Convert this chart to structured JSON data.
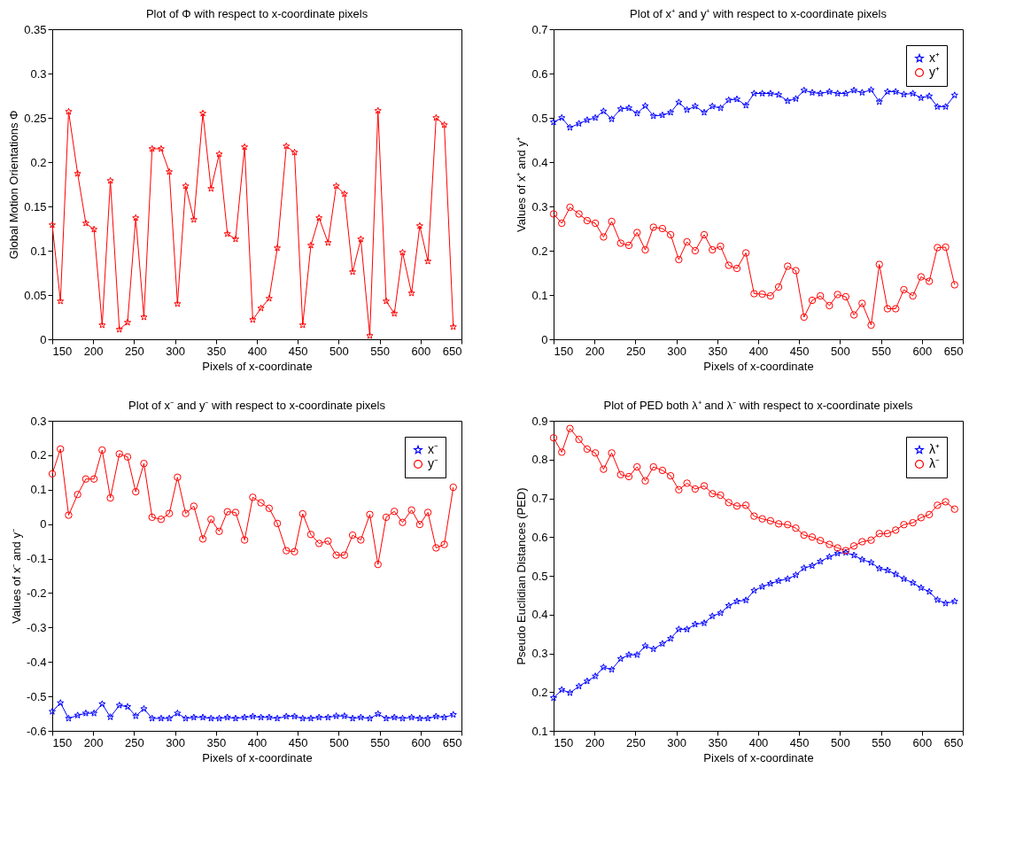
{
  "chart_data": [
    {
      "type": "line",
      "title": "Plot of Φ with respect to x-coordinate pixels",
      "xlabel": "Pixels of x-coordinate",
      "ylabel": "Global Motion Orientations Φ",
      "color": "#ff0000",
      "marker": "star",
      "x": [
        150,
        160,
        170,
        181,
        191,
        201,
        211,
        221,
        232,
        242,
        252,
        262,
        272,
        283,
        293,
        303,
        313,
        323,
        334,
        344,
        354,
        364,
        374,
        385,
        395,
        405,
        415,
        425,
        436,
        446,
        456,
        466,
        476,
        487,
        497,
        507,
        517,
        527,
        538,
        548,
        558,
        568,
        578,
        589,
        599,
        609,
        619,
        629,
        640
      ],
      "values": [
        0.129,
        0.043,
        0.257,
        0.187,
        0.131,
        0.124,
        0.016,
        0.179,
        0.011,
        0.019,
        0.137,
        0.025,
        0.215,
        0.215,
        0.189,
        0.04,
        0.173,
        0.135,
        0.255,
        0.17,
        0.209,
        0.119,
        0.113,
        0.217,
        0.022,
        0.035,
        0.046,
        0.103,
        0.218,
        0.211,
        0.016,
        0.106,
        0.137,
        0.109,
        0.173,
        0.164,
        0.076,
        0.113,
        0.004,
        0.258,
        0.043,
        0.029,
        0.098,
        0.052,
        0.128,
        0.088,
        0.25,
        0.242,
        0.014
      ],
      "xlim": [
        150,
        650
      ],
      "xticks": [
        150,
        200,
        250,
        300,
        350,
        400,
        450,
        500,
        550,
        600,
        650
      ],
      "ylim": [
        0,
        0.35
      ],
      "yticks": [
        0,
        0.05,
        0.1,
        0.15,
        0.2,
        0.25,
        0.3,
        0.35
      ]
    },
    {
      "type": "line",
      "title": "Plot of x⁺ and y⁺ with respect to x-coordinate pixels",
      "xlabel": "Pixels of x-coordinate",
      "ylabel": "Values of x⁺ and y⁺",
      "legend": "top right",
      "x": [
        150,
        160,
        170,
        181,
        191,
        201,
        211,
        221,
        232,
        242,
        252,
        262,
        272,
        283,
        293,
        303,
        313,
        323,
        334,
        344,
        354,
        364,
        374,
        385,
        395,
        405,
        415,
        425,
        436,
        446,
        456,
        466,
        476,
        487,
        497,
        507,
        517,
        527,
        538,
        548,
        558,
        568,
        578,
        589,
        599,
        609,
        619,
        629,
        640
      ],
      "series": [
        {
          "name": "x⁺",
          "color": "#0000ff",
          "marker": "star",
          "values": [
            0.49,
            0.5,
            0.478,
            0.487,
            0.495,
            0.5,
            0.515,
            0.497,
            0.52,
            0.522,
            0.51,
            0.527,
            0.504,
            0.506,
            0.512,
            0.535,
            0.518,
            0.526,
            0.512,
            0.526,
            0.522,
            0.54,
            0.542,
            0.528,
            0.555,
            0.555,
            0.555,
            0.552,
            0.538,
            0.543,
            0.562,
            0.557,
            0.555,
            0.559,
            0.555,
            0.555,
            0.562,
            0.557,
            0.563,
            0.536,
            0.559,
            0.559,
            0.553,
            0.555,
            0.545,
            0.549,
            0.525,
            0.525,
            0.551
          ]
        },
        {
          "name": "y⁺",
          "color": "#ff0000",
          "marker": "circle",
          "values": [
            0.283,
            0.262,
            0.298,
            0.283,
            0.268,
            0.262,
            0.231,
            0.266,
            0.217,
            0.212,
            0.241,
            0.202,
            0.253,
            0.25,
            0.236,
            0.18,
            0.22,
            0.2,
            0.236,
            0.202,
            0.21,
            0.167,
            0.16,
            0.195,
            0.103,
            0.102,
            0.098,
            0.118,
            0.165,
            0.155,
            0.05,
            0.088,
            0.098,
            0.076,
            0.101,
            0.096,
            0.055,
            0.081,
            0.032,
            0.169,
            0.069,
            0.069,
            0.112,
            0.098,
            0.141,
            0.131,
            0.207,
            0.208,
            0.123
          ]
        }
      ],
      "xlim": [
        150,
        650
      ],
      "xticks": [
        150,
        200,
        250,
        300,
        350,
        400,
        450,
        500,
        550,
        600,
        650
      ],
      "ylim": [
        0,
        0.7
      ],
      "yticks": [
        0,
        0.1,
        0.2,
        0.3,
        0.4,
        0.5,
        0.6,
        0.7
      ]
    },
    {
      "type": "line",
      "title": "Plot of x⁻ and  y⁻ with respect to x-coordinate pixels",
      "xlabel": "Pixels of x-coordinate",
      "ylabel": "Values of x⁻ and  y⁻",
      "legend": "top right",
      "x": [
        150,
        160,
        170,
        181,
        191,
        201,
        211,
        221,
        232,
        242,
        252,
        262,
        272,
        283,
        293,
        303,
        313,
        323,
        334,
        344,
        354,
        364,
        374,
        385,
        395,
        405,
        415,
        425,
        436,
        446,
        456,
        466,
        476,
        487,
        497,
        507,
        517,
        527,
        538,
        548,
        558,
        568,
        578,
        589,
        599,
        609,
        619,
        629,
        640
      ],
      "series": [
        {
          "name": "x⁻",
          "color": "#0000ff",
          "marker": "star",
          "values": [
            -0.544,
            -0.519,
            -0.564,
            -0.555,
            -0.549,
            -0.549,
            -0.522,
            -0.56,
            -0.526,
            -0.53,
            -0.557,
            -0.536,
            -0.564,
            -0.564,
            -0.564,
            -0.549,
            -0.564,
            -0.561,
            -0.561,
            -0.564,
            -0.564,
            -0.561,
            -0.564,
            -0.561,
            -0.558,
            -0.561,
            -0.561,
            -0.564,
            -0.558,
            -0.558,
            -0.564,
            -0.564,
            -0.561,
            -0.561,
            -0.557,
            -0.557,
            -0.564,
            -0.561,
            -0.564,
            -0.551,
            -0.564,
            -0.561,
            -0.564,
            -0.561,
            -0.564,
            -0.564,
            -0.558,
            -0.561,
            -0.553
          ]
        },
        {
          "name": "y⁻",
          "color": "#ff0000",
          "marker": "circle",
          "values": [
            0.146,
            0.218,
            0.026,
            0.086,
            0.131,
            0.131,
            0.215,
            0.076,
            0.204,
            0.195,
            0.094,
            0.176,
            0.02,
            0.014,
            0.031,
            0.136,
            0.031,
            0.052,
            -0.043,
            0.014,
            -0.021,
            0.036,
            0.034,
            -0.046,
            0.078,
            0.062,
            0.046,
            0.002,
            -0.077,
            -0.08,
            0.03,
            -0.03,
            -0.056,
            -0.049,
            -0.09,
            -0.09,
            -0.032,
            -0.046,
            0.028,
            -0.117,
            0.02,
            0.037,
            0.005,
            0.041,
            -0.001,
            0.034,
            -0.069,
            -0.059,
            0.107
          ]
        }
      ],
      "xlim": [
        150,
        650
      ],
      "xticks": [
        150,
        200,
        250,
        300,
        350,
        400,
        450,
        500,
        550,
        600,
        650
      ],
      "ylim": [
        -0.6,
        0.3
      ],
      "yticks": [
        -0.6,
        -0.5,
        -0.4,
        -0.3,
        -0.2,
        -0.1,
        0,
        0.1,
        0.2,
        0.3
      ]
    },
    {
      "type": "line",
      "title": "Plot of PED both λ⁺ and λ⁻ with respect to x-coordinate pixels",
      "xlabel": "Pixels of x-coordinate",
      "ylabel": "Pseudo Euclidian Distances (PED)",
      "legend": "top right",
      "x": [
        150,
        160,
        170,
        181,
        191,
        201,
        211,
        221,
        232,
        242,
        252,
        262,
        272,
        283,
        293,
        303,
        313,
        323,
        334,
        344,
        354,
        364,
        374,
        385,
        395,
        405,
        415,
        425,
        436,
        446,
        456,
        466,
        476,
        487,
        497,
        507,
        517,
        527,
        538,
        548,
        558,
        568,
        578,
        589,
        599,
        609,
        619,
        629,
        640
      ],
      "series": [
        {
          "name": "λ⁺",
          "color": "#0000ff",
          "marker": "star",
          "values": [
            0.185,
            0.206,
            0.198,
            0.215,
            0.228,
            0.241,
            0.264,
            0.258,
            0.286,
            0.296,
            0.296,
            0.319,
            0.311,
            0.325,
            0.338,
            0.362,
            0.362,
            0.375,
            0.378,
            0.396,
            0.404,
            0.423,
            0.434,
            0.437,
            0.462,
            0.472,
            0.48,
            0.487,
            0.492,
            0.502,
            0.52,
            0.526,
            0.537,
            0.549,
            0.558,
            0.56,
            0.553,
            0.542,
            0.534,
            0.519,
            0.514,
            0.504,
            0.492,
            0.482,
            0.469,
            0.459,
            0.438,
            0.429,
            0.434
          ]
        },
        {
          "name": "λ⁻",
          "color": "#ff0000",
          "marker": "circle",
          "values": [
            0.856,
            0.819,
            0.88,
            0.852,
            0.827,
            0.817,
            0.775,
            0.817,
            0.761,
            0.756,
            0.781,
            0.745,
            0.781,
            0.772,
            0.758,
            0.722,
            0.739,
            0.724,
            0.732,
            0.712,
            0.708,
            0.689,
            0.68,
            0.682,
            0.654,
            0.647,
            0.642,
            0.634,
            0.632,
            0.623,
            0.605,
            0.6,
            0.591,
            0.581,
            0.572,
            0.565,
            0.577,
            0.588,
            0.592,
            0.609,
            0.609,
            0.618,
            0.632,
            0.637,
            0.65,
            0.658,
            0.682,
            0.691,
            0.672
          ]
        }
      ],
      "xlim": [
        150,
        650
      ],
      "xticks": [
        150,
        200,
        250,
        300,
        350,
        400,
        450,
        500,
        550,
        600,
        650
      ],
      "ylim": [
        0.1,
        0.9
      ],
      "yticks": [
        0.1,
        0.2,
        0.3,
        0.4,
        0.5,
        0.6,
        0.7,
        0.8,
        0.9
      ]
    }
  ]
}
